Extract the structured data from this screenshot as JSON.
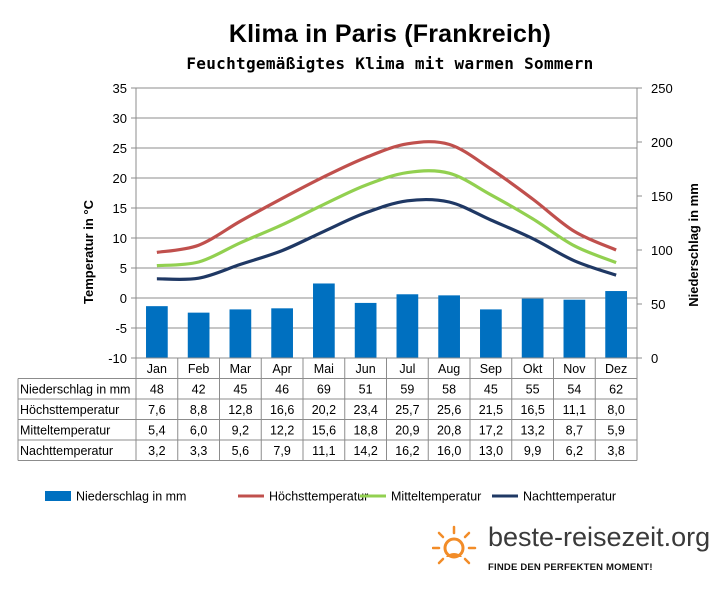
{
  "chart_data": {
    "type": "bar+line",
    "title": "Klima in Paris (Frankreich)",
    "subtitle": "Feuchtgemäßigtes Klima mit warmen Sommern",
    "categories": [
      "Jan",
      "Feb",
      "Mar",
      "Apr",
      "Mai",
      "Jun",
      "Jul",
      "Aug",
      "Sep",
      "Okt",
      "Nov",
      "Dez"
    ],
    "ylabel_left": "Temperatur in °C",
    "ylabel_right": "Niederschlag in mm",
    "ylim_left": [
      -10,
      35
    ],
    "yticks_left": [
      35,
      30,
      25,
      20,
      15,
      10,
      5,
      0,
      -5,
      -10
    ],
    "ylim_right": [
      0,
      250
    ],
    "yticks_right": [
      250,
      200,
      150,
      100,
      50,
      0
    ],
    "series": [
      {
        "name": "Niederschlag in mm",
        "type": "bar",
        "axis": "right",
        "color": "#0070c0",
        "values": [
          48,
          42,
          45,
          46,
          69,
          51,
          59,
          58,
          45,
          55,
          54,
          62
        ]
      },
      {
        "name": "Höchsttemperatur",
        "type": "line",
        "axis": "left",
        "color": "#c0504d",
        "values": [
          7.6,
          8.8,
          12.8,
          16.6,
          20.2,
          23.4,
          25.7,
          25.6,
          21.5,
          16.5,
          11.1,
          8.0
        ]
      },
      {
        "name": "Mitteltemperatur",
        "type": "line",
        "axis": "left",
        "color": "#92d050",
        "values": [
          5.4,
          6.0,
          9.2,
          12.2,
          15.6,
          18.8,
          20.9,
          20.8,
          17.2,
          13.2,
          8.7,
          5.9
        ]
      },
      {
        "name": "Nachttemperatur",
        "type": "line",
        "axis": "left",
        "color": "#1f3864",
        "values": [
          3.2,
          3.3,
          5.6,
          7.9,
          11.1,
          14.2,
          16.2,
          16.0,
          13.0,
          9.9,
          6.2,
          3.8
        ]
      }
    ],
    "table_rows": [
      {
        "label": "Niederschlag in mm",
        "cells": [
          "48",
          "42",
          "45",
          "46",
          "69",
          "51",
          "59",
          "58",
          "45",
          "55",
          "54",
          "62"
        ]
      },
      {
        "label": "Höchsttemperatur",
        "cells": [
          "7,6",
          "8,8",
          "12,8",
          "16,6",
          "20,2",
          "23,4",
          "25,7",
          "25,6",
          "21,5",
          "16,5",
          "11,1",
          "8,0"
        ]
      },
      {
        "label": "Mitteltemperatur",
        "cells": [
          "5,4",
          "6,0",
          "9,2",
          "12,2",
          "15,6",
          "18,8",
          "20,9",
          "20,8",
          "17,2",
          "13,2",
          "8,7",
          "5,9"
        ]
      },
      {
        "label": "Nachttemperatur",
        "cells": [
          "3,2",
          "3,3",
          "5,6",
          "7,9",
          "11,1",
          "14,2",
          "16,2",
          "16,0",
          "13,0",
          "9,9",
          "6,2",
          "3,8"
        ]
      }
    ],
    "legend_position": "bottom"
  },
  "brand": {
    "name": "beste-reisezeit.org",
    "tagline": "FINDE DEN PERFEKTEN MOMENT!"
  }
}
